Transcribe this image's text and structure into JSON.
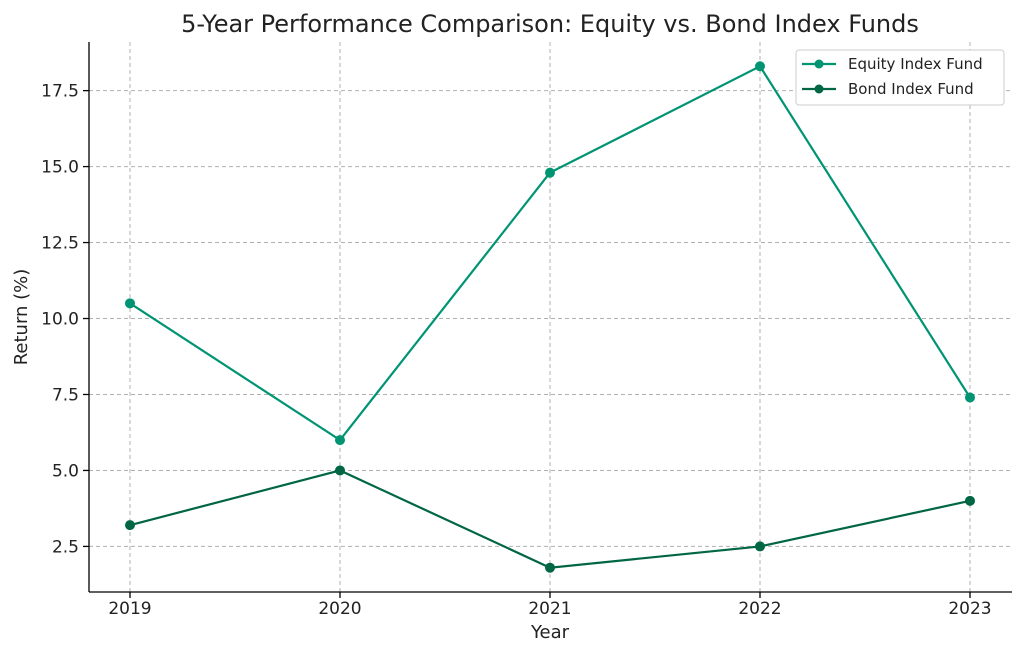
{
  "chart_data": {
    "type": "line",
    "title": "5-Year Performance Comparison: Equity vs. Bond Index Funds",
    "xlabel": "Year",
    "ylabel": "Return (%)",
    "categories": [
      "2019",
      "2020",
      "2021",
      "2022",
      "2023"
    ],
    "ylim": [
      1.0,
      19.1
    ],
    "yticks": [
      "2.5",
      "5.0",
      "7.5",
      "10.0",
      "12.5",
      "15.0",
      "17.5"
    ],
    "grid": true,
    "legend_position": "top-right",
    "series": [
      {
        "name": "Equity Index Fund",
        "values": [
          10.5,
          6.0,
          14.8,
          18.3,
          7.4
        ],
        "color": "#009473"
      },
      {
        "name": "Bond Index Fund",
        "values": [
          3.2,
          5.0,
          1.8,
          2.5,
          4.0
        ],
        "color": "#006644"
      }
    ]
  }
}
